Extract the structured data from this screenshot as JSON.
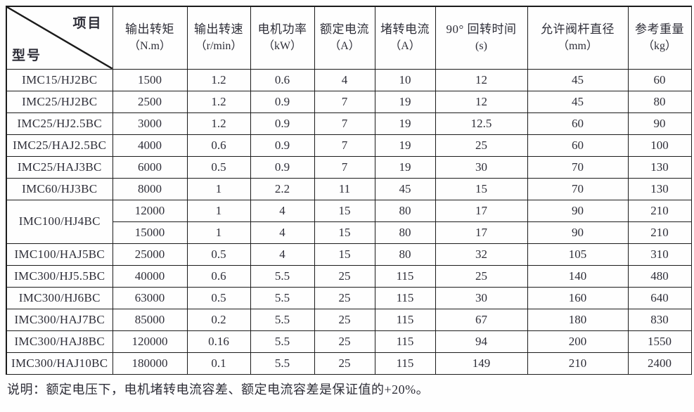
{
  "table": {
    "corner": {
      "top_right": "项目",
      "bottom_left": "型号"
    },
    "columns": [
      {
        "label": "输出转矩",
        "unit": "（N.m）"
      },
      {
        "label": "输出转速",
        "unit": "（r/min）"
      },
      {
        "label": "电机功率",
        "unit": "（kW）"
      },
      {
        "label": "额定电流",
        "unit": "（A）"
      },
      {
        "label": "堵转电流",
        "unit": "（A）"
      },
      {
        "label": "90° 回转时间",
        "unit": "(s)"
      },
      {
        "label": "允许阀杆直径",
        "unit": "（mm）"
      },
      {
        "label": "参考重量",
        "unit": "（kg）"
      }
    ],
    "rows": [
      {
        "model": "IMC15/HJ2BC",
        "values": [
          "1500",
          "1.2",
          "0.6",
          "4",
          "10",
          "12",
          "45",
          "60"
        ]
      },
      {
        "model": "IMC25/HJ2BC",
        "values": [
          "2500",
          "1.2",
          "0.9",
          "7",
          "19",
          "12",
          "45",
          "80"
        ]
      },
      {
        "model": "IMC25/HJ2.5BC",
        "values": [
          "3000",
          "1.2",
          "0.9",
          "7",
          "19",
          "12.5",
          "60",
          "90"
        ]
      },
      {
        "model": "IMC25/HAJ2.5BC",
        "values": [
          "4000",
          "0.6",
          "0.9",
          "7",
          "19",
          "25",
          "60",
          "100"
        ]
      },
      {
        "model": "IMC25/HAJ3BC",
        "values": [
          "6000",
          "0.5",
          "0.9",
          "7",
          "19",
          "30",
          "70",
          "130"
        ]
      },
      {
        "model": "IMC60/HJ3BC",
        "values": [
          "8000",
          "1",
          "2.2",
          "11",
          "45",
          "15",
          "70",
          "130"
        ]
      },
      {
        "model": "IMC100/HJ4BC",
        "rowspan": 2,
        "values": [
          "12000",
          "1",
          "4",
          "15",
          "80",
          "17",
          "90",
          "210"
        ]
      },
      {
        "model": null,
        "values": [
          "15000",
          "1",
          "4",
          "15",
          "80",
          "17",
          "90",
          "210"
        ]
      },
      {
        "model": "IMC100/HAJ5BC",
        "values": [
          "25000",
          "0.5",
          "4",
          "15",
          "80",
          "32",
          "105",
          "310"
        ]
      },
      {
        "model": "IMC300/HJ5.5BC",
        "values": [
          "40000",
          "0.6",
          "5.5",
          "25",
          "115",
          "25",
          "140",
          "480"
        ]
      },
      {
        "model": "IMC300/HJ6BC",
        "values": [
          "63000",
          "0.5",
          "5.5",
          "25",
          "115",
          "30",
          "160",
          "640"
        ]
      },
      {
        "model": "IMC300/HAJ7BC",
        "values": [
          "85000",
          "0.2",
          "5.5",
          "25",
          "115",
          "67",
          "180",
          "830"
        ]
      },
      {
        "model": "IMC300/HAJ8BC",
        "values": [
          "120000",
          "0.16",
          "5.5",
          "25",
          "115",
          "94",
          "200",
          "1550"
        ]
      },
      {
        "model": "IMC300/HAJ10BC",
        "values": [
          "180000",
          "0.1",
          "5.5",
          "25",
          "115",
          "149",
          "210",
          "2400"
        ]
      }
    ]
  },
  "note": "说明：额定电压下，电机堵转电流容差、额定电流容差是保证值的+20%。",
  "colors": {
    "border": "#1b1b1b",
    "text": "#2e2e38",
    "background": "#fefefe"
  }
}
